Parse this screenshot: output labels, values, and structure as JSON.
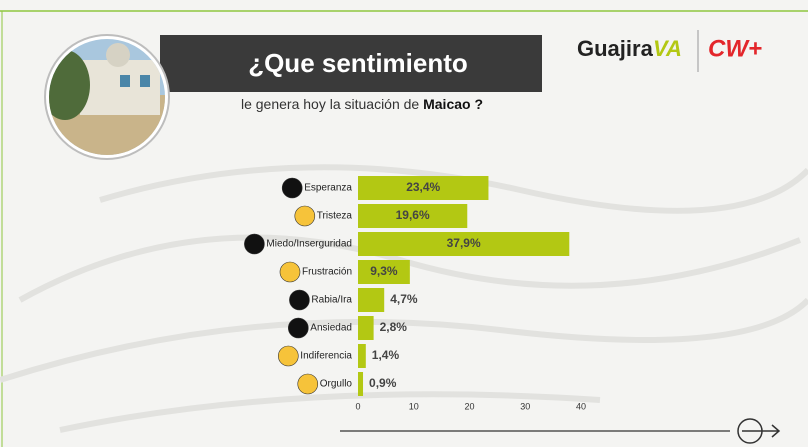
{
  "chart_data": {
    "type": "bar",
    "orientation": "horizontal",
    "title": "¿Que sentimiento",
    "subtitle": "le genera hoy la situación de",
    "subtitle_highlight": "Maicao ?",
    "logos": [
      "Guajira",
      "VA",
      "CW+"
    ],
    "categories": [
      "Esperanza",
      "Tristeza",
      "Miedo/Inserguridad",
      "Frustración",
      "Rabia/Ira",
      "Ansiedad",
      "Indiferencia",
      "Orgullo"
    ],
    "values": [
      23.4,
      19.6,
      37.9,
      9.3,
      4.7,
      2.8,
      1.4,
      0.9
    ],
    "value_labels": [
      "23,4%",
      "19,6%",
      "37,9%",
      "9,3%",
      "4,7%",
      "2,8%",
      "1,4%",
      "0,9%"
    ],
    "color": "#b3c813",
    "xlim": [
      0,
      40
    ],
    "xticks": [
      0,
      10,
      20,
      30,
      40
    ],
    "grid": false
  }
}
